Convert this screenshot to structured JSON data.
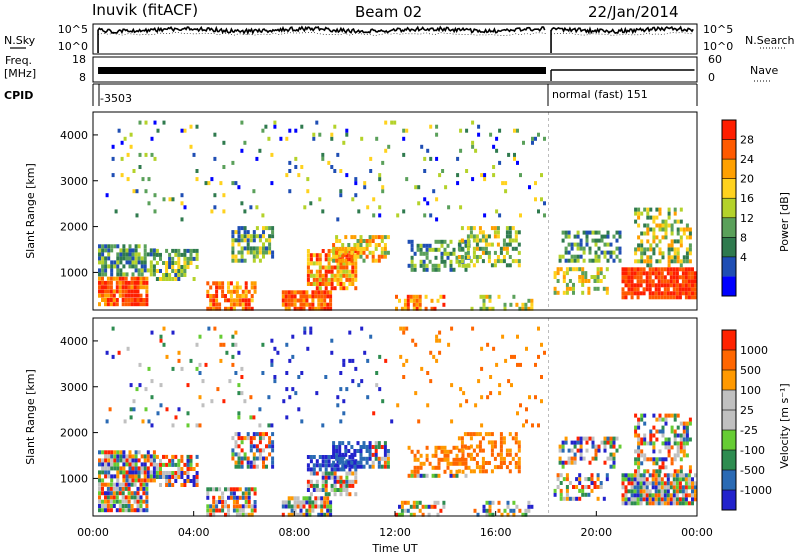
{
  "header": {
    "station": "Inuvik (fitACF)",
    "beam": "Beam 02",
    "date": "22/Jan/2014"
  },
  "side_labels": {
    "nsky": "N.Sky",
    "nsearch": "N.Search",
    "freq_line1": "Freq.",
    "freq_line2": "[MHz]",
    "nave": "Nave",
    "cpid": "CPID"
  },
  "cpid_info": {
    "first": "-3503",
    "second": "normal (fast) 151"
  },
  "colors": {
    "power_scale": [
      "#0000ff",
      "#1f4eb4",
      "#2f7a4e",
      "#5aa05a",
      "#b4d22a",
      "#ffd21e",
      "#ffa000",
      "#ff5a00",
      "#ff1e00"
    ],
    "velocity_scale": [
      "#2222cc",
      "#2a6ab4",
      "#2d8c50",
      "#66cc33",
      "#c0c0c0",
      "#c0c0c0",
      "#ff9900",
      "#ff6600",
      "#ff2200"
    ]
  },
  "chart_data": [
    {
      "type": "line",
      "name": "noise",
      "left_tick_labels": [
        "10^5",
        "10^0"
      ],
      "right_tick_labels": [
        "10^5",
        "10^0"
      ],
      "xlim": [
        0,
        24
      ]
    },
    {
      "type": "line",
      "name": "frequency",
      "left_tick_labels": [
        "18",
        "8"
      ],
      "right_tick_labels": [
        "60",
        "0"
      ],
      "ylim_left": [
        8,
        18
      ],
      "ylim_right": [
        0,
        60
      ],
      "xlim": [
        0,
        24
      ]
    },
    {
      "type": "heatmap",
      "name": "power",
      "xlabel": "",
      "ylabel": "Slant Range [km]",
      "yticks": [
        1000,
        2000,
        3000,
        4000
      ],
      "ylim": [
        180,
        4500
      ],
      "xlim": [
        0,
        24
      ],
      "colorbar_label": "Power [dB]",
      "colorbar_ticks": [
        "28",
        "24",
        "20",
        "16",
        "12",
        "8",
        "4"
      ]
    },
    {
      "type": "heatmap",
      "name": "velocity",
      "xlabel": "Time UT",
      "ylabel": "Slant Range [km]",
      "yticks": [
        1000,
        2000,
        3000,
        4000
      ],
      "ylim": [
        180,
        4500
      ],
      "xlim": [
        0,
        24
      ],
      "xticks": [
        "00:00",
        "04:00",
        "08:00",
        "12:00",
        "16:00",
        "20:00",
        "00:00"
      ],
      "colorbar_label": "Velocity [m s⁻¹]",
      "colorbar_ticks": [
        "1000",
        "500",
        "100",
        "25",
        "-25",
        "-100",
        "-500",
        "-1000"
      ]
    }
  ]
}
